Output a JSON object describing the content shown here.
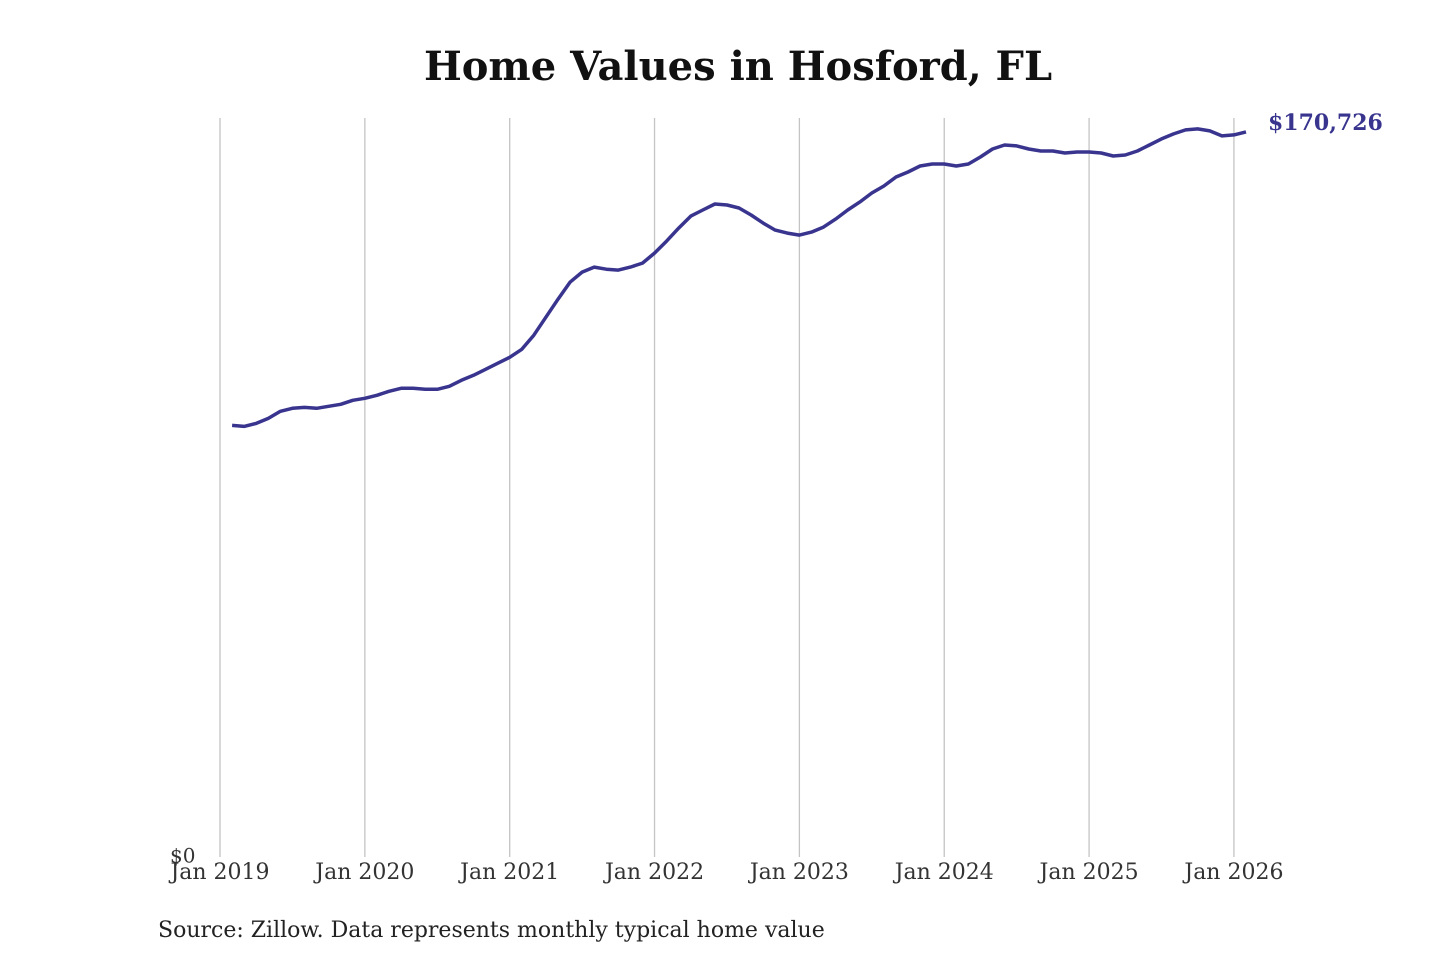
{
  "chart_data": {
    "type": "line",
    "title": "Home Values in Hosford, FL",
    "source": "Source: Zillow. Data represents monthly typical home value",
    "x": [
      "2019-02",
      "2019-03",
      "2019-04",
      "2019-05",
      "2019-06",
      "2019-07",
      "2019-08",
      "2019-09",
      "2019-10",
      "2019-11",
      "2019-12",
      "2020-01",
      "2020-02",
      "2020-03",
      "2020-04",
      "2020-05",
      "2020-06",
      "2020-07",
      "2020-08",
      "2020-09",
      "2020-10",
      "2020-11",
      "2020-12",
      "2021-01",
      "2021-02",
      "2021-03",
      "2021-04",
      "2021-05",
      "2021-06",
      "2021-07",
      "2021-08",
      "2021-09",
      "2021-10",
      "2021-11",
      "2021-12",
      "2022-01",
      "2022-02",
      "2022-03",
      "2022-04",
      "2022-05",
      "2022-06",
      "2022-07",
      "2022-08",
      "2022-09",
      "2022-10",
      "2022-11",
      "2022-12",
      "2023-01",
      "2023-02",
      "2023-03",
      "2023-04",
      "2023-05",
      "2023-06",
      "2023-07",
      "2023-08",
      "2023-09",
      "2023-10",
      "2023-11",
      "2023-12",
      "2024-01",
      "2024-02",
      "2024-03",
      "2024-04",
      "2024-05",
      "2024-06",
      "2024-07",
      "2024-08",
      "2024-09",
      "2024-10",
      "2024-11",
      "2024-12",
      "2025-01",
      "2025-02",
      "2025-03",
      "2025-04",
      "2025-05",
      "2025-06",
      "2025-07",
      "2025-08",
      "2025-09",
      "2025-10",
      "2025-11",
      "2025-12",
      "2026-01",
      "2026-02"
    ],
    "series": [
      {
        "name": "Home value",
        "color": "#39358f",
        "values": [
          101630,
          101390,
          102100,
          103280,
          104930,
          105640,
          105870,
          105640,
          106110,
          106580,
          107520,
          108000,
          108700,
          109650,
          110350,
          110350,
          110120,
          110120,
          110830,
          112240,
          113420,
          114830,
          116250,
          117660,
          119550,
          122850,
          127100,
          131340,
          135350,
          137710,
          138890,
          138410,
          138180,
          138890,
          139830,
          142190,
          145020,
          148080,
          150910,
          152330,
          153740,
          153510,
          152800,
          151150,
          149260,
          147610,
          146900,
          146430,
          147140,
          148320,
          150200,
          152330,
          154210,
          156340,
          157990,
          160110,
          161290,
          162700,
          163170,
          163170,
          162700,
          163170,
          164820,
          166710,
          167650,
          167420,
          166710,
          166240,
          166240,
          165770,
          166000,
          166000,
          165770,
          165060,
          165300,
          166240,
          167650,
          169070,
          170250,
          171190,
          171430,
          170960,
          169780,
          170010,
          170726
        ],
        "value_labels": [
          null,
          null,
          null,
          null,
          null,
          null,
          null,
          null,
          null,
          null,
          null,
          null,
          null,
          null,
          null,
          null,
          null,
          null,
          null,
          null,
          null,
          null,
          null,
          null,
          null,
          null,
          null,
          null,
          null,
          null,
          null,
          null,
          null,
          null,
          null,
          null,
          null,
          null,
          null,
          null,
          null,
          null,
          null,
          null,
          null,
          null,
          null,
          null,
          null,
          null,
          null,
          null,
          null,
          null,
          null,
          null,
          null,
          null,
          null,
          null,
          null,
          null,
          null,
          null,
          null,
          null,
          null,
          null,
          null,
          null,
          null,
          null,
          null,
          null,
          null,
          null,
          null,
          null,
          null,
          null,
          null,
          null,
          null,
          null,
          "$170,726"
        ]
      }
    ],
    "xlim": [
      "2019-01",
      "2026-02"
    ],
    "xticks": [
      {
        "value": "2019-01",
        "label": "Jan 2019"
      },
      {
        "value": "2020-01",
        "label": "Jan 2020"
      },
      {
        "value": "2021-01",
        "label": "Jan 2021"
      },
      {
        "value": "2022-01",
        "label": "Jan 2022"
      },
      {
        "value": "2023-01",
        "label": "Jan 2023"
      },
      {
        "value": "2024-01",
        "label": "Jan 2024"
      },
      {
        "value": "2025-01",
        "label": "Jan 2025"
      },
      {
        "value": "2026-01",
        "label": "Jan 2026"
      }
    ],
    "ylim": [
      0,
      174000
    ],
    "yticks": [
      {
        "value": 0,
        "label": "$0"
      }
    ],
    "grid": true
  }
}
